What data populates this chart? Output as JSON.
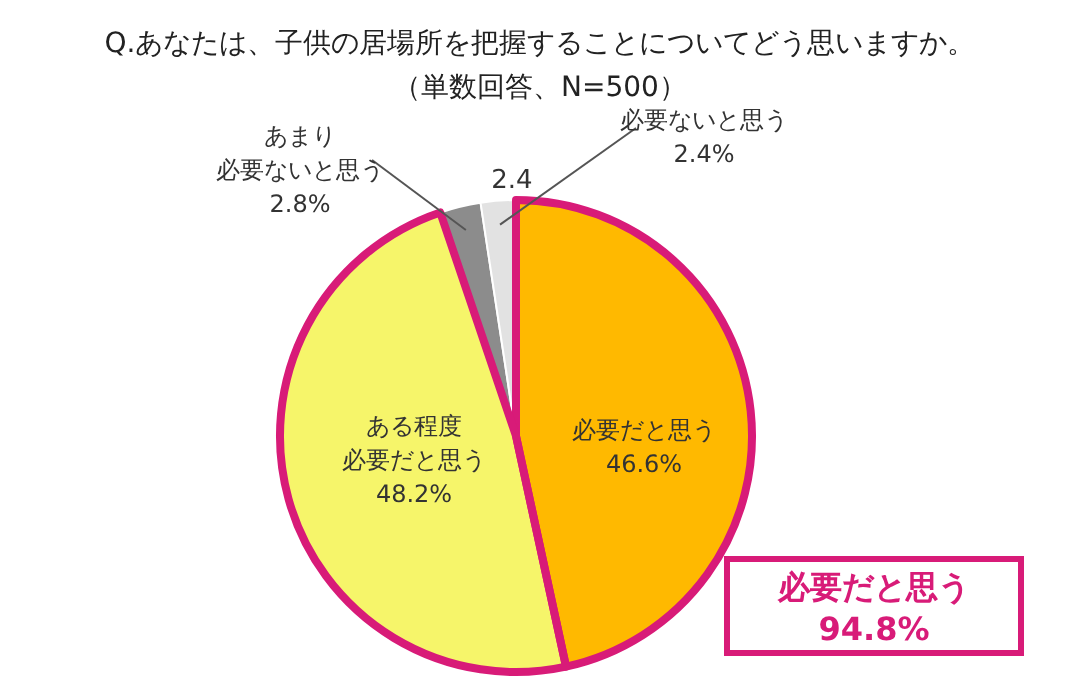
{
  "chart_data": {
    "type": "pie",
    "title": "Q.あなたは、子供の居場所を把握することについてどう思いますか。",
    "subtitle": "（単数回答、N=500）",
    "categories": [
      "必要だと思う",
      "ある程度必要だと思う",
      "あまり必要ないと思う",
      "必要ないと思う"
    ],
    "values": [
      46.6,
      48.2,
      2.8,
      2.4
    ],
    "value_labels": [
      "46.6%",
      "48.2%",
      "2.8%",
      "2.4%"
    ],
    "colors": [
      "#ffb900",
      "#f6f56a",
      "#8c8c8c",
      "#e2e2e2"
    ],
    "annotations": [
      "2.4",
      "必要だと思う\n94.8%"
    ]
  }
}
